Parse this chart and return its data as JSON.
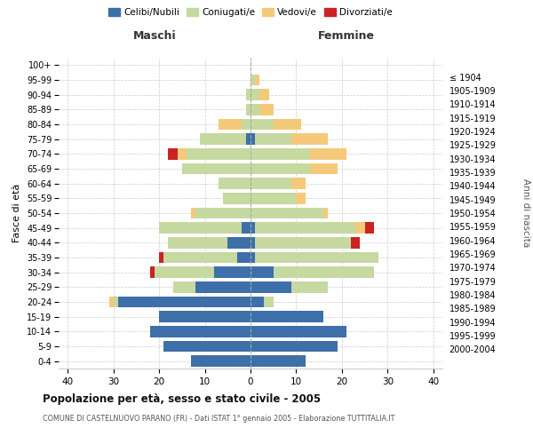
{
  "age_groups": [
    "0-4",
    "5-9",
    "10-14",
    "15-19",
    "20-24",
    "25-29",
    "30-34",
    "35-39",
    "40-44",
    "45-49",
    "50-54",
    "55-59",
    "60-64",
    "65-69",
    "70-74",
    "75-79",
    "80-84",
    "85-89",
    "90-94",
    "95-99",
    "100+"
  ],
  "birth_years": [
    "2000-2004",
    "1995-1999",
    "1990-1994",
    "1985-1989",
    "1980-1984",
    "1975-1979",
    "1970-1974",
    "1965-1969",
    "1960-1964",
    "1955-1959",
    "1950-1954",
    "1945-1949",
    "1940-1944",
    "1935-1939",
    "1930-1934",
    "1925-1929",
    "1920-1924",
    "1915-1919",
    "1910-1914",
    "1905-1909",
    "≤ 1904"
  ],
  "males": {
    "celibi": [
      13,
      19,
      22,
      20,
      29,
      12,
      8,
      3,
      5,
      2,
      0,
      0,
      0,
      0,
      0,
      1,
      0,
      0,
      0,
      0,
      0
    ],
    "coniugati": [
      0,
      0,
      0,
      0,
      1,
      5,
      13,
      16,
      13,
      18,
      12,
      6,
      7,
      15,
      14,
      10,
      2,
      1,
      1,
      0,
      0
    ],
    "vedovi": [
      0,
      0,
      0,
      0,
      1,
      0,
      0,
      0,
      0,
      0,
      1,
      0,
      0,
      0,
      2,
      0,
      5,
      0,
      0,
      0,
      0
    ],
    "divorziati": [
      0,
      0,
      0,
      0,
      0,
      0,
      1,
      1,
      0,
      0,
      0,
      0,
      0,
      0,
      2,
      0,
      0,
      0,
      0,
      0,
      0
    ]
  },
  "females": {
    "nubili": [
      12,
      19,
      21,
      16,
      3,
      9,
      5,
      1,
      1,
      1,
      0,
      0,
      0,
      0,
      0,
      1,
      0,
      0,
      0,
      0,
      0
    ],
    "coniugate": [
      0,
      0,
      0,
      0,
      2,
      8,
      22,
      27,
      21,
      22,
      16,
      10,
      9,
      13,
      13,
      8,
      5,
      2,
      2,
      1,
      0
    ],
    "vedove": [
      0,
      0,
      0,
      0,
      0,
      0,
      0,
      0,
      0,
      2,
      1,
      2,
      3,
      6,
      8,
      8,
      6,
      3,
      2,
      1,
      0
    ],
    "divorziate": [
      0,
      0,
      0,
      0,
      0,
      0,
      0,
      0,
      2,
      2,
      0,
      0,
      0,
      0,
      0,
      0,
      0,
      0,
      0,
      0,
      0
    ]
  },
  "colors": {
    "celibi": "#3d6fa8",
    "coniugati": "#c5d9a0",
    "vedovi": "#f5c97a",
    "divorziati": "#cc2222"
  },
  "xlim": 42,
  "title": "Popolazione per età, sesso e stato civile - 2005",
  "subtitle": "COMUNE DI CASTELNUOVO PARANO (FR) - Dati ISTAT 1° gennaio 2005 - Elaborazione TUTTITALIA.IT",
  "ylabel_left": "Fasce di età",
  "ylabel_right": "Anni di nascita",
  "legend_labels": [
    "Celibi/Nubili",
    "Coniugati/e",
    "Vedovi/e",
    "Divorziati/e"
  ],
  "maschi_label": "Maschi",
  "femmine_label": "Femmine",
  "background_color": "#ffffff",
  "grid_color": "#cccccc"
}
